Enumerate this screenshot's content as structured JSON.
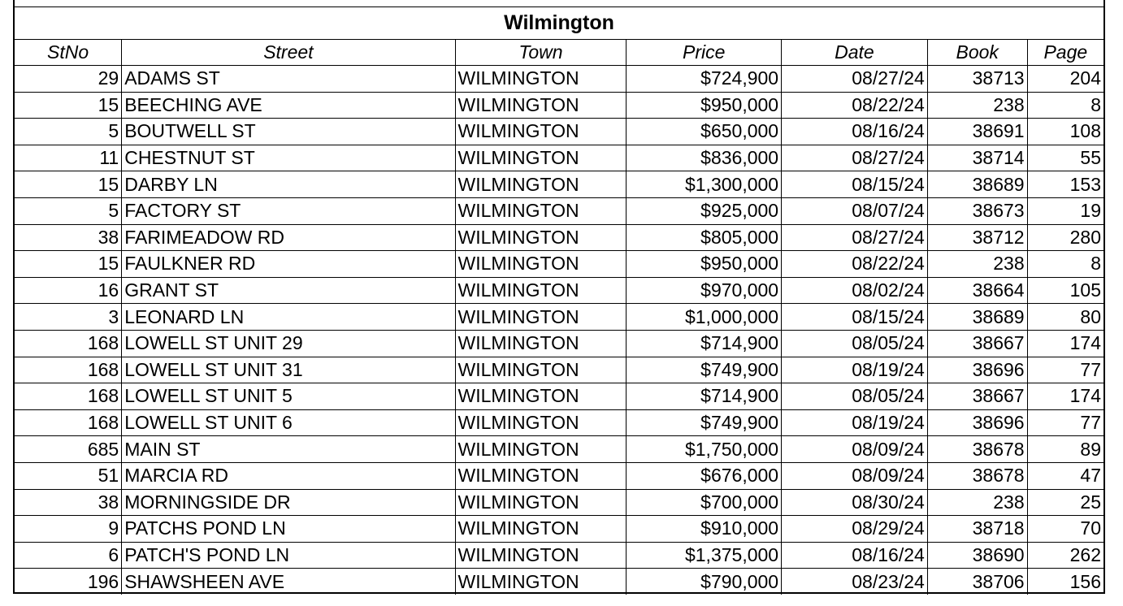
{
  "title": "Wilmington",
  "headers": [
    "StNo",
    "Street",
    "Town",
    "Price",
    "Date",
    "Book",
    "Page"
  ],
  "rows": [
    [
      "29",
      "ADAMS ST",
      "WILMINGTON",
      "$724,900",
      "08/27/24",
      "38713",
      "204"
    ],
    [
      "15",
      "BEECHING AVE",
      "WILMINGTON",
      "$950,000",
      "08/22/24",
      "238",
      "8"
    ],
    [
      "5",
      "BOUTWELL ST",
      "WILMINGTON",
      "$650,000",
      "08/16/24",
      "38691",
      "108"
    ],
    [
      "11",
      "CHESTNUT ST",
      "WILMINGTON",
      "$836,000",
      "08/27/24",
      "38714",
      "55"
    ],
    [
      "15",
      "DARBY LN",
      "WILMINGTON",
      "$1,300,000",
      "08/15/24",
      "38689",
      "153"
    ],
    [
      "5",
      "FACTORY ST",
      "WILMINGTON",
      "$925,000",
      "08/07/24",
      "38673",
      "19"
    ],
    [
      "38",
      "FARIMEADOW RD",
      "WILMINGTON",
      "$805,000",
      "08/27/24",
      "38712",
      "280"
    ],
    [
      "15",
      "FAULKNER RD",
      "WILMINGTON",
      "$950,000",
      "08/22/24",
      "238",
      "8"
    ],
    [
      "16",
      "GRANT ST",
      "WILMINGTON",
      "$970,000",
      "08/02/24",
      "38664",
      "105"
    ],
    [
      "3",
      "LEONARD LN",
      "WILMINGTON",
      "$1,000,000",
      "08/15/24",
      "38689",
      "80"
    ],
    [
      "168",
      "LOWELL ST UNIT 29",
      "WILMINGTON",
      "$714,900",
      "08/05/24",
      "38667",
      "174"
    ],
    [
      "168",
      "LOWELL ST UNIT 31",
      "WILMINGTON",
      "$749,900",
      "08/19/24",
      "38696",
      "77"
    ],
    [
      "168",
      "LOWELL ST UNIT 5",
      "WILMINGTON",
      "$714,900",
      "08/05/24",
      "38667",
      "174"
    ],
    [
      "168",
      "LOWELL ST UNIT 6",
      "WILMINGTON",
      "$749,900",
      "08/19/24",
      "38696",
      "77"
    ],
    [
      "685",
      "MAIN ST",
      "WILMINGTON",
      "$1,750,000",
      "08/09/24",
      "38678",
      "89"
    ],
    [
      "51",
      "MARCIA RD",
      "WILMINGTON",
      "$676,000",
      "08/09/24",
      "38678",
      "47"
    ],
    [
      "38",
      "MORNINGSIDE DR",
      "WILMINGTON",
      "$700,000",
      "08/30/24",
      "238",
      "25"
    ],
    [
      "9",
      "PATCHS POND LN",
      "WILMINGTON",
      "$910,000",
      "08/29/24",
      "38718",
      "70"
    ],
    [
      "6",
      "PATCH'S POND LN",
      "WILMINGTON",
      "$1,375,000",
      "08/16/24",
      "38690",
      "262"
    ],
    [
      "196",
      "SHAWSHEEN AVE",
      "WILMINGTON",
      "$790,000",
      "08/23/24",
      "38706",
      "156"
    ]
  ]
}
